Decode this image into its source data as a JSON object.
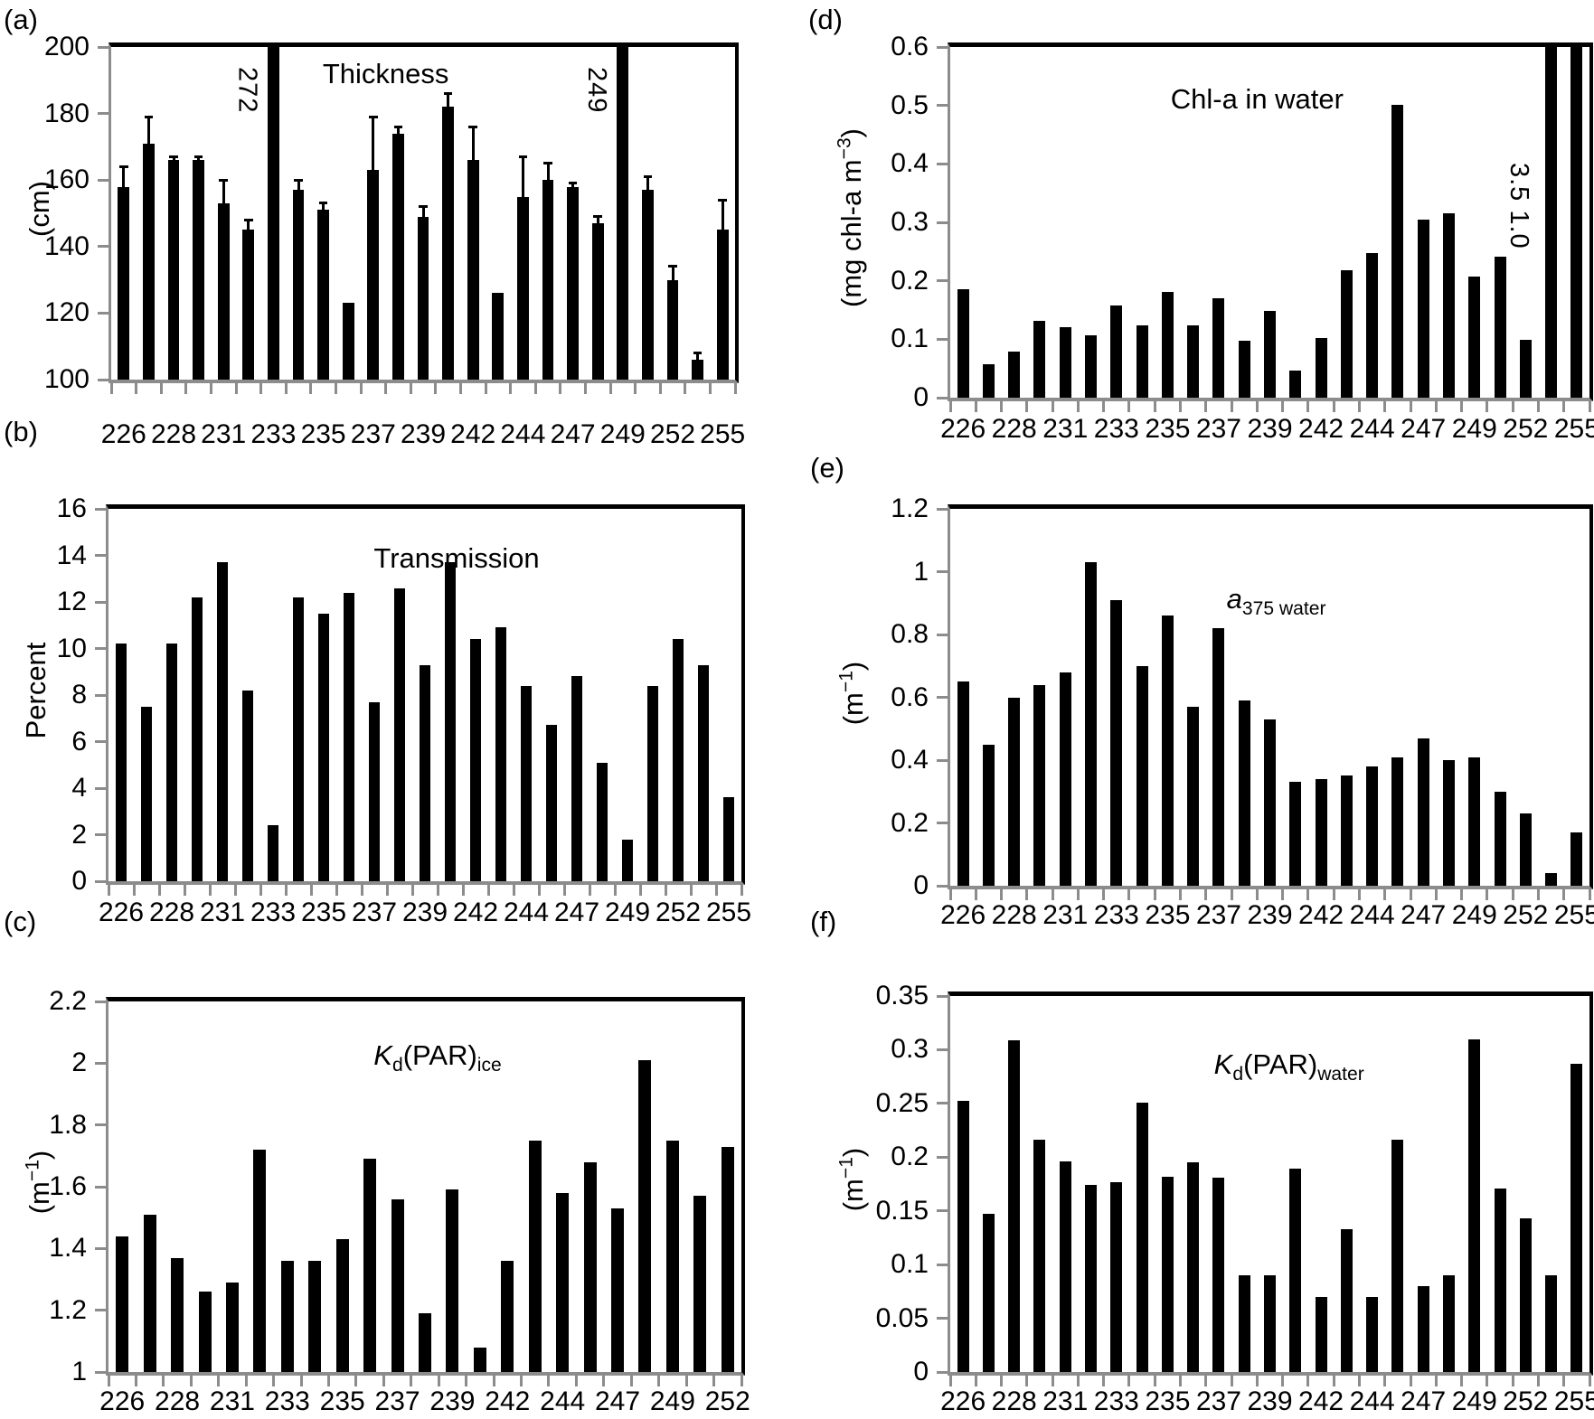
{
  "figure": {
    "background_color": "#ffffff",
    "bar_color": "#000000",
    "frame_color": "#000000",
    "axis_tick_color": "#8c8c8c",
    "x_axis_note": "day of year, labels shown under every other bar"
  },
  "chart_data": [
    {
      "id": "a",
      "panel_letter": "(a)",
      "type": "bar",
      "title": "Thickness",
      "title_segments": [
        {
          "text": "Thickness"
        }
      ],
      "ylabel": "(cm)",
      "ylabel_segments": [
        {
          "text": "(cm)"
        }
      ],
      "ylim": [
        100,
        200
      ],
      "yticks": [
        100,
        120,
        140,
        160,
        180,
        200
      ],
      "ytick_labels": [
        "100",
        "120",
        "140",
        "160",
        "180",
        "200"
      ],
      "x_labels": [
        "226",
        "228",
        "231",
        "233",
        "235",
        "237",
        "239",
        "242",
        "244",
        "247",
        "249",
        "252",
        "255"
      ],
      "values": [
        158,
        171,
        166,
        166,
        153,
        145,
        272,
        157,
        151,
        123,
        163,
        174,
        149,
        182,
        166,
        126,
        155,
        160,
        158,
        147,
        249,
        157,
        130,
        106,
        145
      ],
      "errors": [
        6,
        8,
        1,
        1,
        7,
        3,
        0,
        3,
        2,
        0,
        16,
        2,
        3,
        4,
        10,
        0,
        12,
        5,
        1,
        2,
        0,
        4,
        4,
        2,
        9
      ],
      "clipped": [
        {
          "index": 6,
          "label": "272"
        },
        {
          "index": 20,
          "label": "249"
        }
      ],
      "grid": false,
      "legend": false
    },
    {
      "id": "b",
      "panel_letter": "(b)",
      "type": "bar",
      "title": "Transmission",
      "title_segments": [
        {
          "text": "Transmission"
        }
      ],
      "ylabel": "Percent",
      "ylabel_segments": [
        {
          "text": "Percent"
        }
      ],
      "ylim": [
        0,
        16
      ],
      "yticks": [
        0,
        2,
        4,
        6,
        8,
        10,
        12,
        14,
        16
      ],
      "ytick_labels": [
        "0",
        "2",
        "4",
        "6",
        "8",
        "10",
        "12",
        "14",
        "16"
      ],
      "x_labels": [
        "226",
        "228",
        "231",
        "233",
        "235",
        "237",
        "239",
        "242",
        "244",
        "247",
        "249",
        "252",
        "255"
      ],
      "values": [
        10.2,
        7.5,
        10.2,
        12.2,
        13.7,
        8.2,
        2.4,
        12.2,
        11.5,
        12.4,
        7.7,
        12.6,
        9.3,
        13.7,
        10.4,
        10.9,
        8.4,
        6.7,
        8.8,
        5.1,
        1.8,
        8.4,
        10.4,
        9.3,
        3.6
      ],
      "grid": false,
      "legend": false
    },
    {
      "id": "c",
      "panel_letter": "(c)",
      "type": "bar",
      "title": "Kd(PAR)ice",
      "title_segments": [
        {
          "text": "K",
          "italic": true
        },
        {
          "text": "d",
          "sub": true
        },
        {
          "text": "(PAR)"
        },
        {
          "text": "ice",
          "sub": true
        }
      ],
      "ylabel": "(m⁻¹)",
      "ylabel_segments": [
        {
          "text": "(m"
        },
        {
          "text": "−1",
          "sup": true
        },
        {
          "text": ")"
        }
      ],
      "ylim": [
        1,
        2.2
      ],
      "yticks": [
        1,
        1.2,
        1.4,
        1.6,
        1.8,
        2,
        2.2
      ],
      "ytick_labels": [
        "1",
        "1.2",
        "1.4",
        "1.6",
        "1.8",
        "2",
        "2.2"
      ],
      "x_labels": [
        "226",
        "228",
        "231",
        "233",
        "235",
        "237",
        "239",
        "242",
        "244",
        "247",
        "249",
        "252"
      ],
      "values": [
        1.44,
        1.51,
        1.37,
        1.26,
        1.29,
        1.72,
        1.36,
        1.36,
        1.43,
        1.69,
        1.56,
        1.19,
        1.59,
        1.08,
        1.36,
        1.75,
        1.58,
        1.68,
        1.53,
        2.01,
        1.75,
        1.57,
        1.73
      ],
      "grid": false,
      "legend": false
    },
    {
      "id": "d",
      "panel_letter": "(d)",
      "type": "bar",
      "title": "Chl-a in water",
      "title_segments": [
        {
          "text": "Chl-a in water"
        }
      ],
      "ylabel": "(mg chl-a m⁻³)",
      "ylabel_segments": [
        {
          "text": "(mg chl-a m"
        },
        {
          "text": "−3",
          "sup": true
        },
        {
          "text": ")"
        }
      ],
      "ylim": [
        0,
        0.6
      ],
      "yticks": [
        0,
        0.1,
        0.2,
        0.3,
        0.4,
        0.5,
        0.6
      ],
      "ytick_labels": [
        "0",
        "0.1",
        "0.2",
        "0.3",
        "0.4",
        "0.5",
        "0.6"
      ],
      "x_labels": [
        "226",
        "228",
        "231",
        "233",
        "235",
        "237",
        "239",
        "242",
        "244",
        "247",
        "249",
        "252",
        "255"
      ],
      "values": [
        0.185,
        0.058,
        0.079,
        0.131,
        0.12,
        0.107,
        0.157,
        0.123,
        0.181,
        0.123,
        0.17,
        0.097,
        0.149,
        0.046,
        0.102,
        0.218,
        0.247,
        0.501,
        0.304,
        0.316,
        0.208,
        0.241,
        0.099,
        3.5,
        1.0
      ],
      "clipped": [
        {
          "index": 23,
          "label": "3.5"
        },
        {
          "index": 24,
          "label": "1.0"
        }
      ],
      "grid": false,
      "legend": false
    },
    {
      "id": "e",
      "panel_letter": "(e)",
      "type": "bar",
      "title": "a375 water",
      "title_segments": [
        {
          "text": "a",
          "italic": true
        },
        {
          "text": "375 water",
          "sub": true
        }
      ],
      "ylabel": "(m⁻¹)",
      "ylabel_segments": [
        {
          "text": "(m"
        },
        {
          "text": "−1",
          "sup": true
        },
        {
          "text": ")"
        }
      ],
      "ylim": [
        0,
        1.2
      ],
      "yticks": [
        0,
        0.2,
        0.4,
        0.6,
        0.8,
        1,
        1.2
      ],
      "ytick_labels": [
        "0",
        "0.2",
        "0.4",
        "0.6",
        "0.8",
        "1",
        "1.2"
      ],
      "x_labels": [
        "226",
        "228",
        "231",
        "233",
        "235",
        "237",
        "239",
        "242",
        "244",
        "247",
        "249",
        "252",
        "255"
      ],
      "values": [
        0.65,
        0.45,
        0.6,
        0.64,
        0.68,
        1.03,
        0.91,
        0.7,
        0.86,
        0.57,
        0.82,
        0.59,
        0.53,
        0.33,
        0.34,
        0.35,
        0.38,
        0.41,
        0.47,
        0.4,
        0.41,
        0.3,
        0.23,
        0.04,
        0.17
      ],
      "grid": false,
      "legend": false
    },
    {
      "id": "f",
      "panel_letter": "(f)",
      "type": "bar",
      "title": "Kd(PAR)water",
      "title_segments": [
        {
          "text": "K",
          "italic": true
        },
        {
          "text": "d",
          "sub": true
        },
        {
          "text": "(PAR)"
        },
        {
          "text": "water",
          "sub": true
        }
      ],
      "ylabel": "(m⁻¹)",
      "ylabel_segments": [
        {
          "text": "(m"
        },
        {
          "text": "−1",
          "sup": true
        },
        {
          "text": ")"
        }
      ],
      "ylim": [
        0,
        0.35
      ],
      "yticks": [
        0,
        0.05,
        0.1,
        0.15,
        0.2,
        0.25,
        0.3,
        0.35
      ],
      "ytick_labels": [
        "0",
        "0.05",
        "0.1",
        "0.15",
        "0.2",
        "0.25",
        "0.3",
        "0.35"
      ],
      "x_labels": [
        "226",
        "228",
        "231",
        "233",
        "235",
        "237",
        "239",
        "242",
        "244",
        "247",
        "249",
        "252",
        "255"
      ],
      "values": [
        0.252,
        0.147,
        0.309,
        0.216,
        0.196,
        0.174,
        0.177,
        0.251,
        0.182,
        0.195,
        0.181,
        0.09,
        0.09,
        0.189,
        0.07,
        0.133,
        0.07,
        0.216,
        0.08,
        0.09,
        0.31,
        0.171,
        0.143,
        0.09,
        0.287
      ],
      "grid": false,
      "legend": false
    }
  ]
}
